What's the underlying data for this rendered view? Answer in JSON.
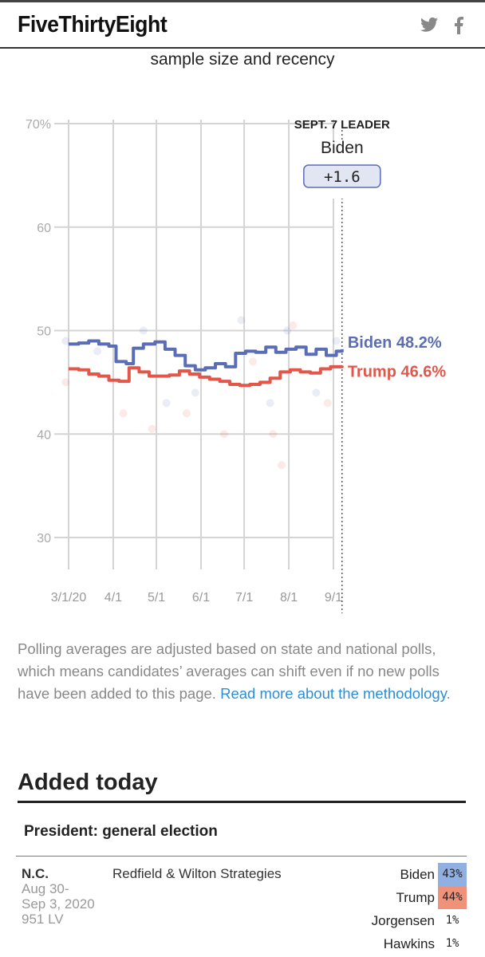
{
  "header": {
    "logo": "FiveThirtyEight",
    "twitter_icon": "twitter-icon",
    "facebook_icon": "facebook-icon"
  },
  "subtitle": "sample size and recency",
  "colors": {
    "biden": "#5a6db5",
    "trump": "#e3564a",
    "biden_cell": "#8fb0e0",
    "trump_cell": "#ef9279",
    "link": "#2a8fd6"
  },
  "chart_data": {
    "type": "line",
    "xlabel": "",
    "ylabel": "",
    "x_unit": "days since 3/1/20",
    "xlim": [
      0,
      190
    ],
    "ylim": [
      30,
      70
    ],
    "yticks": [
      {
        "v": 70,
        "label": "70%"
      },
      {
        "v": 60,
        "label": "60"
      },
      {
        "v": 50,
        "label": "50"
      },
      {
        "v": 40,
        "label": "40"
      },
      {
        "v": 30,
        "label": "30"
      }
    ],
    "xticks": [
      {
        "v": 0,
        "label": "3/1/20"
      },
      {
        "v": 31,
        "label": "4/1"
      },
      {
        "v": 61,
        "label": "5/1"
      },
      {
        "v": 92,
        "label": "6/1"
      },
      {
        "v": 122,
        "label": "7/1"
      },
      {
        "v": 153,
        "label": "8/1"
      },
      {
        "v": 184,
        "label": "9/1"
      }
    ],
    "grid": true,
    "marker_day": 190,
    "leader": {
      "title": "SEPT. 7 LEADER",
      "name": "Biden",
      "margin": "+1.6"
    },
    "series": [
      {
        "name": "Biden",
        "end_label": "Biden 48.2%",
        "x": [
          0,
          7,
          14,
          21,
          28,
          33,
          40,
          45,
          52,
          60,
          67,
          74,
          81,
          88,
          95,
          102,
          109,
          116,
          123,
          130,
          137,
          144,
          151,
          158,
          165,
          172,
          179,
          186,
          190
        ],
        "y": [
          48.7,
          48.8,
          49.0,
          48.7,
          48.5,
          47.0,
          46.8,
          48.3,
          48.7,
          48.9,
          48.2,
          47.6,
          46.6,
          46.2,
          46.4,
          46.8,
          46.5,
          47.8,
          48.0,
          47.9,
          48.4,
          47.9,
          48.2,
          48.4,
          47.7,
          48.2,
          47.6,
          48.0,
          48.2
        ]
      },
      {
        "name": "Trump",
        "end_label": "Trump 46.6%",
        "x": [
          0,
          7,
          14,
          21,
          28,
          35,
          42,
          49,
          56,
          63,
          70,
          77,
          84,
          91,
          98,
          105,
          112,
          119,
          126,
          133,
          140,
          147,
          154,
          161,
          168,
          175,
          182,
          190
        ],
        "y": [
          46.3,
          46.2,
          45.8,
          45.6,
          45.2,
          45.1,
          46.4,
          46.0,
          45.6,
          45.6,
          45.7,
          46.1,
          45.8,
          45.5,
          45.3,
          45.1,
          44.8,
          44.7,
          44.8,
          45.0,
          45.4,
          46.0,
          46.2,
          46.0,
          45.9,
          46.3,
          46.5,
          46.6
        ]
      }
    ],
    "polls": [
      {
        "c": "Biden",
        "x": -2,
        "y": 49
      },
      {
        "c": "Trump",
        "x": -2,
        "y": 45
      },
      {
        "c": "Biden",
        "x": 20,
        "y": 48
      },
      {
        "c": "Trump",
        "x": 38,
        "y": 42
      },
      {
        "c": "Biden",
        "x": 52,
        "y": 50
      },
      {
        "c": "Trump",
        "x": 58,
        "y": 40.5
      },
      {
        "c": "Biden",
        "x": 68,
        "y": 43
      },
      {
        "c": "Trump",
        "x": 82,
        "y": 42
      },
      {
        "c": "Biden",
        "x": 88,
        "y": 44
      },
      {
        "c": "Trump",
        "x": 108,
        "y": 40
      },
      {
        "c": "Biden",
        "x": 120,
        "y": 51
      },
      {
        "c": "Trump",
        "x": 128,
        "y": 47
      },
      {
        "c": "Biden",
        "x": 140,
        "y": 43
      },
      {
        "c": "Trump",
        "x": 142,
        "y": 40
      },
      {
        "c": "Trump",
        "x": 148,
        "y": 37
      },
      {
        "c": "Biden",
        "x": 152,
        "y": 50
      },
      {
        "c": "Trump",
        "x": 156,
        "y": 50.5
      },
      {
        "c": "Biden",
        "x": 172,
        "y": 44
      },
      {
        "c": "Trump",
        "x": 180,
        "y": 43
      },
      {
        "c": "Biden",
        "x": 186,
        "y": 49
      }
    ]
  },
  "note": {
    "text": "Polling averages are adjusted based on state and national polls, which means candidates’ averages can shift even if no new polls have been added to this page. ",
    "link": "Read more about the methodology",
    "end": "."
  },
  "added_today": "Added today",
  "race": "President: general election",
  "poll": {
    "state": "N.C.",
    "dates_1": "Aug 30-",
    "dates_2": "Sep 3, 2020",
    "sample": "951 LV",
    "pollster": "Redfield & Wilton Strategies",
    "results": [
      {
        "name": "Biden",
        "pct": "43%"
      },
      {
        "name": "Trump",
        "pct": "44%"
      },
      {
        "name": "Jorgensen",
        "pct": "1%"
      },
      {
        "name": "Hawkins",
        "pct": "1%"
      }
    ]
  }
}
